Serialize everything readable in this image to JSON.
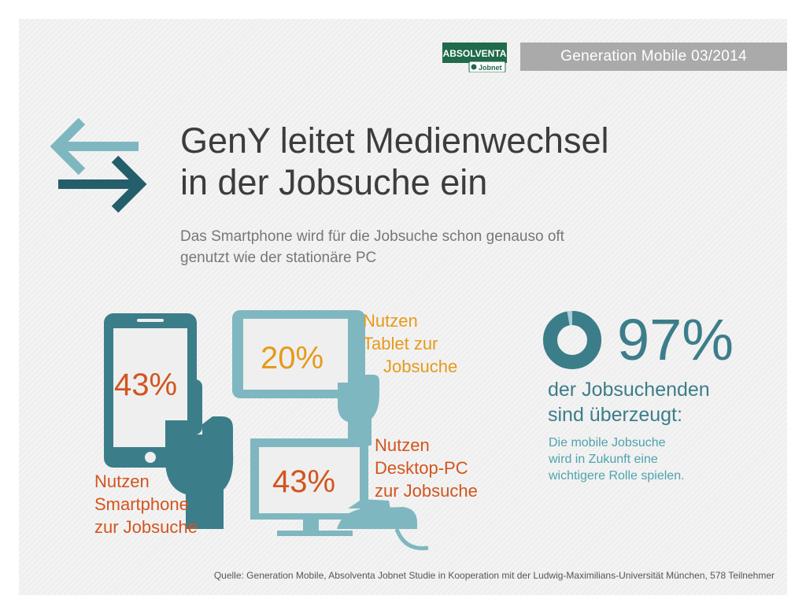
{
  "header": {
    "logo_text": "ABSOLVENTA",
    "logo_subtext": "Jobnet",
    "series_label": "Generation Mobile 03/2014"
  },
  "title": {
    "line1": "GenY leitet Medienwechsel",
    "line2": "in der Jobsuche ein"
  },
  "subtitle": {
    "line1": "Das Smartphone wird für die Jobsuche schon genauso oft",
    "line2": "genutzt wie der stationäre PC"
  },
  "devices": {
    "smartphone": {
      "percent": "43%",
      "label_lines": [
        "Nutzen",
        "Smartphone",
        "zur Jobsuche"
      ]
    },
    "tablet": {
      "percent": "20%",
      "label_lines": [
        "Nutzen",
        "Tablet zur",
        "Jobsuche"
      ]
    },
    "desktop": {
      "percent": "43%",
      "label_lines": [
        "Nutzen",
        "Desktop-PC",
        "zur Jobsuche"
      ]
    }
  },
  "stat": {
    "percent": "97%",
    "donut_value": 0.97,
    "headline_lines": [
      "der Jobsuchenden",
      "sind überzeugt:"
    ],
    "detail_lines": [
      "Die mobile Jobsuche",
      "wird in Zukunft eine",
      "wichtigere Rolle spielen."
    ]
  },
  "source": "Quelle: Generation Mobile, Absolventa Jobnet Studie in Kooperation mit der Ludwig-Maximilians-Universität München, 578 Teilnehmer",
  "colors": {
    "teal_dark": "#3c7d8a",
    "teal_light": "#7fb7c0",
    "teal_pale": "#a9d0d6",
    "orange": "#d2551e",
    "amber": "#e69a1a",
    "logo_green": "#1f6b4a"
  }
}
